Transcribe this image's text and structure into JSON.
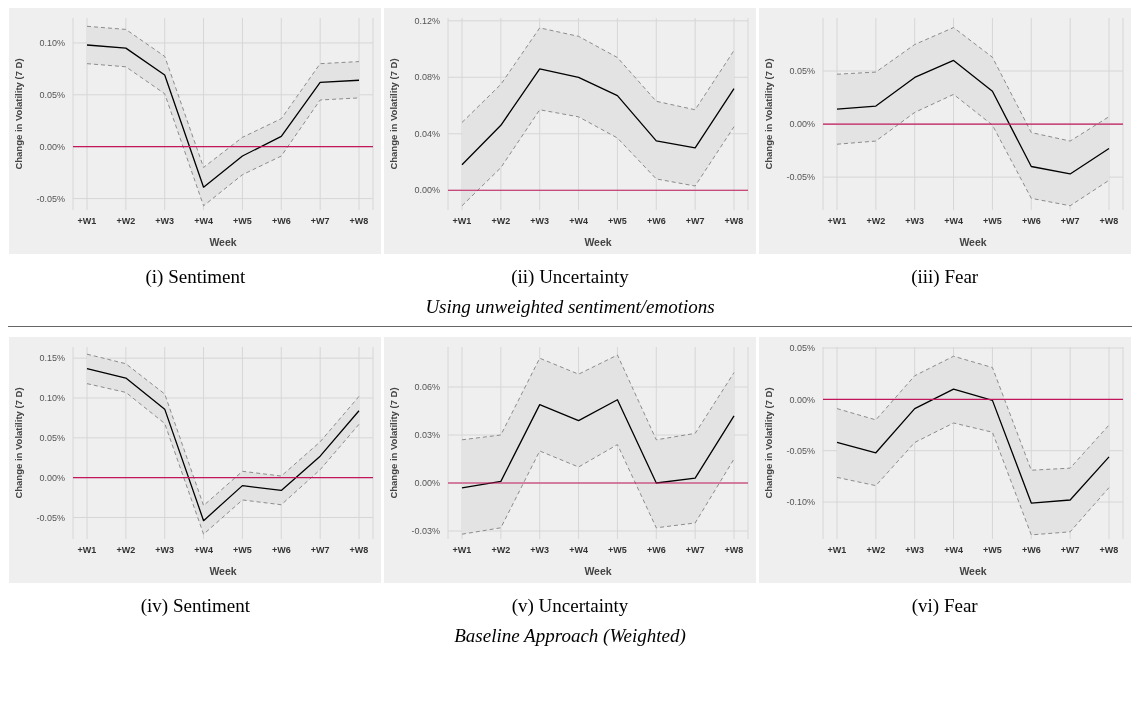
{
  "chart_data": [
    {
      "type": "line",
      "title": "(i) Sentiment",
      "xlabel": "Week",
      "ylabel": "Change in Volatility (7 D)",
      "categories": [
        "+W1",
        "+W2",
        "+W3",
        "+W4",
        "+W5",
        "+W6",
        "+W7",
        "+W8"
      ],
      "series": [
        {
          "color": "#000000",
          "values": [
            0.098,
            0.095,
            0.069,
            -0.039,
            -0.009,
            0.01,
            0.062,
            0.064
          ],
          "lower": [
            0.08,
            0.077,
            0.051,
            -0.057,
            -0.027,
            -0.009,
            0.045,
            0.047
          ],
          "upper": [
            0.116,
            0.113,
            0.087,
            -0.02,
            0.009,
            0.027,
            0.08,
            0.082
          ]
        },
        {
          "type": "line",
          "color": "#8c8c8c",
          "line_style": "dashed",
          "values": [
            0.08,
            0.077,
            0.051,
            -0.057,
            -0.027,
            -0.009,
            0.045,
            0.047
          ]
        },
        {
          "type": "line",
          "color": "#8c8c8c",
          "line_style": "dashed",
          "values": [
            0.116,
            0.113,
            0.087,
            -0.02,
            0.009,
            0.027,
            0.08,
            0.082
          ]
        }
      ],
      "ylim": [
        -0.061,
        0.124
      ],
      "yticks": [
        {
          "value": -0.05,
          "label": "-0.05%"
        },
        {
          "value": 0,
          "label": "0.00%"
        },
        {
          "value": 0.05,
          "label": "0.05%"
        },
        {
          "value": 0.1,
          "label": "0.10%"
        }
      ],
      "ref_lines": [
        {
          "axis": "y",
          "value": 0,
          "color": "#c2185b"
        }
      ],
      "grid": true,
      "marker": "none",
      "line_style": "solid"
    },
    {
      "type": "line",
      "title": "(ii) Uncertainty",
      "xlabel": "Week",
      "ylabel": "Change in Volatility (7 D)",
      "categories": [
        "+W1",
        "+W2",
        "+W3",
        "+W4",
        "+W5",
        "+W6",
        "+W7",
        "+W8"
      ],
      "series": [
        {
          "color": "#000000",
          "values": [
            0.018,
            0.046,
            0.086,
            0.08,
            0.067,
            0.035,
            0.03,
            0.072
          ],
          "lower": [
            -0.011,
            0.016,
            0.057,
            0.052,
            0.037,
            0.008,
            0.003,
            0.045
          ],
          "upper": [
            0.048,
            0.075,
            0.115,
            0.109,
            0.094,
            0.063,
            0.057,
            0.099
          ]
        },
        {
          "type": "line",
          "color": "#8c8c8c",
          "line_style": "dashed",
          "values": [
            -0.011,
            0.016,
            0.057,
            0.052,
            0.037,
            0.008,
            0.003,
            0.045
          ]
        },
        {
          "type": "line",
          "color": "#8c8c8c",
          "line_style": "dashed",
          "values": [
            0.048,
            0.075,
            0.115,
            0.109,
            0.094,
            0.063,
            0.057,
            0.099
          ]
        }
      ],
      "ylim": [
        -0.014,
        0.122
      ],
      "yticks": [
        {
          "value": 0,
          "label": "0.00%"
        },
        {
          "value": 0.04,
          "label": "0.04%"
        },
        {
          "value": 0.08,
          "label": "0.08%"
        },
        {
          "value": 0.12,
          "label": "0.12%"
        }
      ],
      "ref_lines": [
        {
          "axis": "y",
          "value": 0,
          "color": "#c2185b"
        }
      ],
      "grid": true,
      "marker": "none",
      "line_style": "solid",
      "annotations": [
        "Using unweighted sentiment/emotions"
      ]
    },
    {
      "type": "line",
      "title": "(iii) Fear",
      "xlabel": "Week",
      "ylabel": "Change in Volatility (7 D)",
      "categories": [
        "+W1",
        "+W2",
        "+W3",
        "+W4",
        "+W5",
        "+W6",
        "+W7",
        "+W8"
      ],
      "series": [
        {
          "color": "#000000",
          "values": [
            0.014,
            0.017,
            0.044,
            0.06,
            0.031,
            -0.04,
            -0.047,
            -0.023
          ],
          "lower": [
            -0.019,
            -0.016,
            0.011,
            0.028,
            -0.001,
            -0.07,
            -0.077,
            -0.053
          ],
          "upper": [
            0.047,
            0.049,
            0.075,
            0.091,
            0.063,
            -0.008,
            -0.016,
            0.007
          ]
        },
        {
          "type": "line",
          "color": "#8c8c8c",
          "line_style": "dashed",
          "values": [
            -0.019,
            -0.016,
            0.011,
            0.028,
            -0.001,
            -0.07,
            -0.077,
            -0.053
          ]
        },
        {
          "type": "line",
          "color": "#8c8c8c",
          "line_style": "dashed",
          "values": [
            0.047,
            0.049,
            0.075,
            0.091,
            0.063,
            -0.008,
            -0.016,
            0.007
          ]
        }
      ],
      "ylim": [
        -0.081,
        0.1
      ],
      "yticks": [
        {
          "value": -0.05,
          "label": "-0.05%"
        },
        {
          "value": 0,
          "label": "0.00%"
        },
        {
          "value": 0.05,
          "label": "0.05%"
        }
      ],
      "ref_lines": [
        {
          "axis": "y",
          "value": 0,
          "color": "#c2185b"
        }
      ],
      "grid": true,
      "marker": "none",
      "line_style": "solid"
    },
    {
      "type": "line",
      "title": "(iv) Sentiment",
      "xlabel": "Week",
      "ylabel": "Change in Volatility (7 D)",
      "categories": [
        "+W1",
        "+W2",
        "+W3",
        "+W4",
        "+W5",
        "+W6",
        "+W7",
        "+W8"
      ],
      "series": [
        {
          "color": "#000000",
          "values": [
            0.137,
            0.125,
            0.086,
            -0.054,
            -0.01,
            -0.016,
            0.027,
            0.084
          ],
          "lower": [
            0.118,
            0.107,
            0.068,
            -0.071,
            -0.028,
            -0.034,
            0.01,
            0.067
          ],
          "upper": [
            0.155,
            0.143,
            0.105,
            -0.035,
            0.008,
            0.002,
            0.045,
            0.102
          ]
        },
        {
          "type": "line",
          "color": "#8c8c8c",
          "line_style": "dashed",
          "values": [
            0.118,
            0.107,
            0.068,
            -0.071,
            -0.028,
            -0.034,
            0.01,
            0.067
          ]
        },
        {
          "type": "line",
          "color": "#8c8c8c",
          "line_style": "dashed",
          "values": [
            0.155,
            0.143,
            0.105,
            -0.035,
            0.008,
            0.002,
            0.045,
            0.102
          ]
        }
      ],
      "ylim": [
        -0.077,
        0.164
      ],
      "yticks": [
        {
          "value": -0.05,
          "label": "-0.05%"
        },
        {
          "value": 0,
          "label": "0.00%"
        },
        {
          "value": 0.05,
          "label": "0.05%"
        },
        {
          "value": 0.1,
          "label": "0.10%"
        },
        {
          "value": 0.15,
          "label": "0.15%"
        }
      ],
      "ref_lines": [
        {
          "axis": "y",
          "value": 0,
          "color": "#c2185b"
        }
      ],
      "grid": true,
      "marker": "none",
      "line_style": "solid"
    },
    {
      "type": "line",
      "title": "(v) Uncertainty",
      "xlabel": "Week",
      "ylabel": "Change in Volatility (7 D)",
      "categories": [
        "+W1",
        "+W2",
        "+W3",
        "+W4",
        "+W5",
        "+W6",
        "+W7",
        "+W8"
      ],
      "series": [
        {
          "color": "#000000",
          "values": [
            -0.003,
            0.001,
            0.049,
            0.039,
            0.052,
            0.0,
            0.003,
            0.042
          ],
          "lower": [
            -0.032,
            -0.028,
            0.02,
            0.01,
            0.024,
            -0.028,
            -0.025,
            0.015
          ],
          "upper": [
            0.027,
            0.03,
            0.078,
            0.068,
            0.08,
            0.027,
            0.031,
            0.069
          ]
        },
        {
          "type": "line",
          "color": "#8c8c8c",
          "line_style": "dashed",
          "values": [
            -0.032,
            -0.028,
            0.02,
            0.01,
            0.024,
            -0.028,
            -0.025,
            0.015
          ]
        },
        {
          "type": "line",
          "color": "#8c8c8c",
          "line_style": "dashed",
          "values": [
            0.027,
            0.03,
            0.078,
            0.068,
            0.08,
            0.027,
            0.031,
            0.069
          ]
        }
      ],
      "ylim": [
        -0.035,
        0.085
      ],
      "yticks": [
        {
          "value": -0.03,
          "label": "-0.03%"
        },
        {
          "value": 0,
          "label": "0.00%"
        },
        {
          "value": 0.03,
          "label": "0.03%"
        },
        {
          "value": 0.06,
          "label": "0.06%"
        }
      ],
      "ref_lines": [
        {
          "axis": "y",
          "value": 0,
          "color": "#c2185b"
        }
      ],
      "grid": true,
      "marker": "none",
      "line_style": "solid",
      "annotations": [
        "Baseline Approach (Weighted)"
      ]
    },
    {
      "type": "line",
      "title": "(vi) Fear",
      "xlabel": "Week",
      "ylabel": "Change in Volatility (7 D)",
      "categories": [
        "+W1",
        "+W2",
        "+W3",
        "+W4",
        "+W5",
        "+W6",
        "+W7",
        "+W8"
      ],
      "series": [
        {
          "color": "#000000",
          "values": [
            -0.042,
            -0.052,
            -0.009,
            0.01,
            -0.001,
            -0.101,
            -0.098,
            -0.056
          ],
          "lower": [
            -0.076,
            -0.084,
            -0.042,
            -0.023,
            -0.032,
            -0.132,
            -0.129,
            -0.086
          ],
          "upper": [
            -0.009,
            -0.02,
            0.023,
            0.042,
            0.031,
            -0.069,
            -0.067,
            -0.025
          ]
        },
        {
          "type": "line",
          "color": "#8c8c8c",
          "line_style": "dashed",
          "values": [
            -0.076,
            -0.084,
            -0.042,
            -0.023,
            -0.032,
            -0.132,
            -0.129,
            -0.086
          ]
        },
        {
          "type": "line",
          "color": "#8c8c8c",
          "line_style": "dashed",
          "values": [
            -0.009,
            -0.02,
            0.023,
            0.042,
            0.031,
            -0.069,
            -0.067,
            -0.025
          ]
        }
      ],
      "ylim": [
        -0.136,
        0.051
      ],
      "yticks": [
        {
          "value": -0.1,
          "label": "-0.10%"
        },
        {
          "value": -0.05,
          "label": "-0.05%"
        },
        {
          "value": 0,
          "label": "0.00%"
        },
        {
          "value": 0.05,
          "label": "0.05%"
        }
      ],
      "ref_lines": [
        {
          "axis": "y",
          "value": 0,
          "color": "#c2185b"
        }
      ],
      "grid": true,
      "marker": "none",
      "line_style": "solid"
    }
  ]
}
